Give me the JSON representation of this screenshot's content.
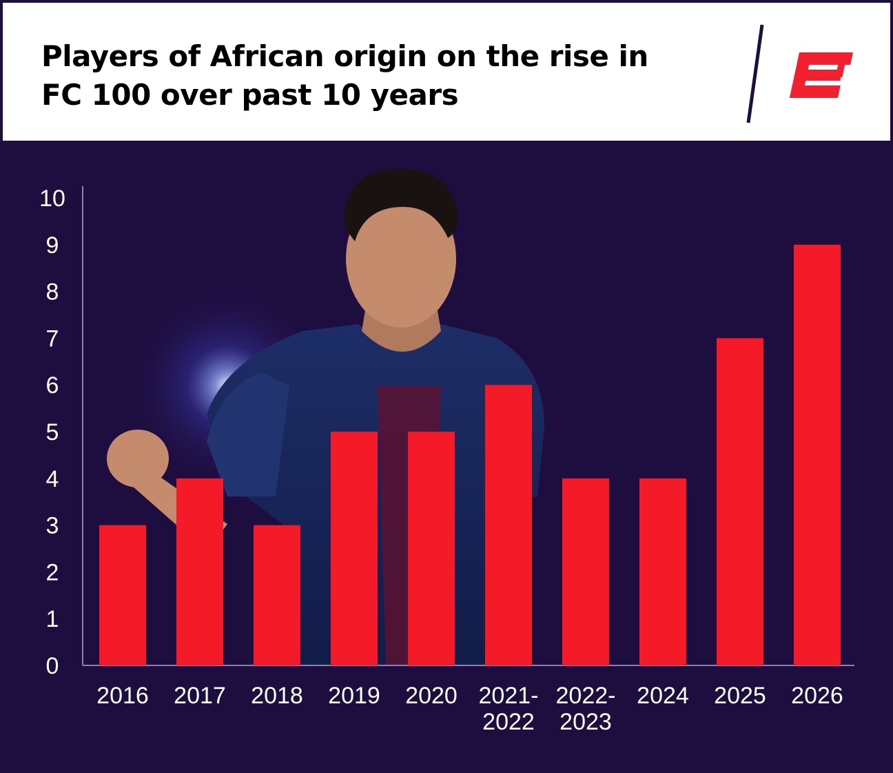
{
  "header": {
    "title": "Players of African origin on the rise in FC 100 over past 10 years"
  },
  "brand": {
    "logo_icon": "espn-e-logo-icon",
    "color": "#f0202f"
  },
  "colors": {
    "background": "#1e0d3f",
    "bar": "#f41a28",
    "axis": "#8b7fb4",
    "label": "#ffffff"
  },
  "chart_data": {
    "type": "bar",
    "categories": [
      "2016",
      "2017",
      "2018",
      "2019",
      "2020",
      "2021-2022",
      "2022-2023",
      "2024",
      "2025",
      "2026"
    ],
    "category_lines": [
      [
        "2016"
      ],
      [
        "2017"
      ],
      [
        "2018"
      ],
      [
        "2019"
      ],
      [
        "2020"
      ],
      [
        "2021-",
        "2022"
      ],
      [
        "2022-",
        "2023"
      ],
      [
        "2024"
      ],
      [
        "2025"
      ],
      [
        "2026"
      ]
    ],
    "values": [
      3,
      4,
      3,
      5,
      5,
      6,
      4,
      4,
      7,
      9
    ],
    "yticks": [
      0,
      1,
      2,
      3,
      4,
      5,
      6,
      7,
      8,
      9,
      10
    ],
    "ylim": [
      0,
      10
    ],
    "title": "Players of African origin on the rise in FC 100 over past 10 years",
    "xlabel": "",
    "ylabel": "",
    "grid": false,
    "legend": "none"
  }
}
